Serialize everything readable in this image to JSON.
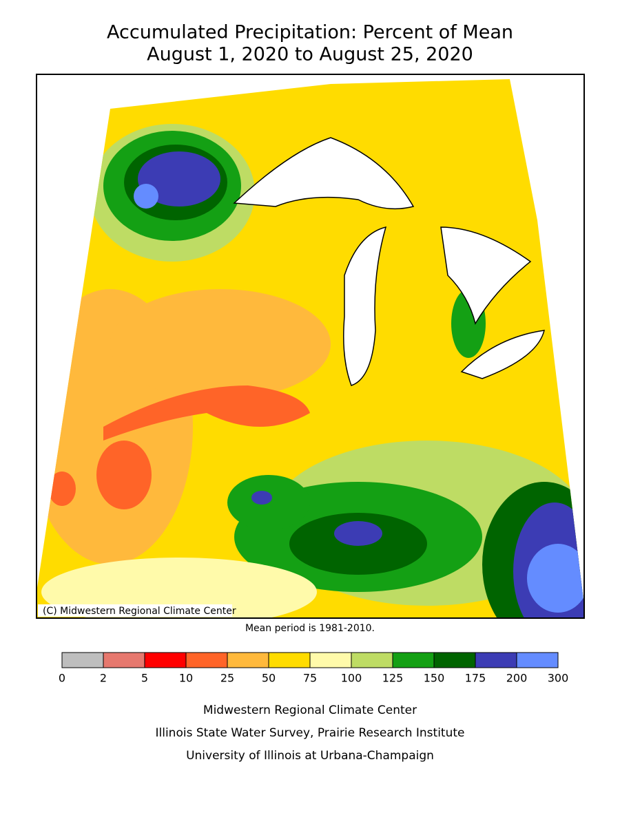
{
  "title": "Accumulated Precipitation: Percent of Mean",
  "subtitle": "August 1, 2020 to August 25, 2020",
  "map": {
    "copyright": "(C) Midwestern Regional Climate Center"
  },
  "note": "Mean period is 1981-2010.",
  "legend": {
    "ticks": [
      0,
      2,
      5,
      10,
      25,
      50,
      75,
      100,
      125,
      150,
      175,
      200,
      300
    ],
    "colors": [
      "#bebebe",
      "#e6786e",
      "#ff0000",
      "#ff6428",
      "#ffb93c",
      "#ffdc00",
      "#fffaaa",
      "#bedc64",
      "#14a014",
      "#006400",
      "#3c3cb4",
      "#648cff"
    ]
  },
  "credits": [
    "Midwestern Regional Climate Center",
    "Illinois State Water Survey, Prairie Research Institute",
    "University of Illinois at Urbana-Champaign"
  ]
}
